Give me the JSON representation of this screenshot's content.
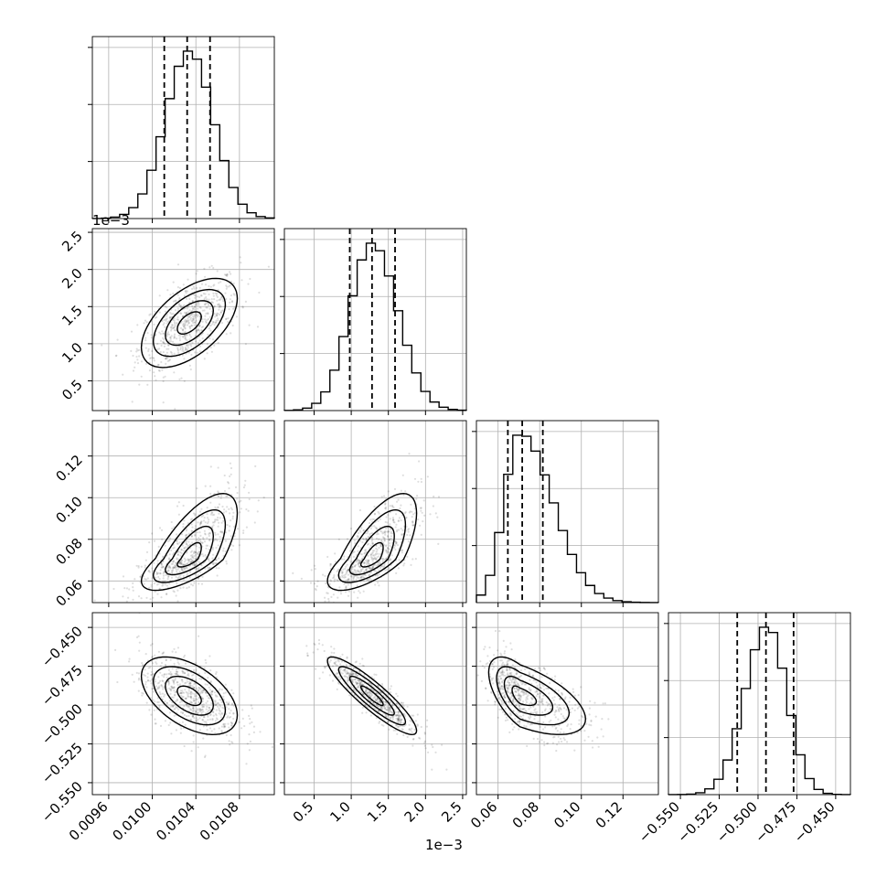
{
  "chart_data": {
    "type": "corner",
    "parameters": [
      {
        "range": [
          0.00945,
          0.01112
        ],
        "ticks": [
          0.0096,
          0.01,
          0.0104,
          0.0108
        ],
        "tick_labels": [
          "0.0096",
          "0.0100",
          "0.0104",
          "0.0108"
        ],
        "quantiles": [
          0.01011,
          0.01032,
          0.01053
        ],
        "peak": 0.01034,
        "sigma": 0.00022,
        "offset_text": ""
      },
      {
        "range": [
          0.0001,
          0.00255
        ],
        "ticks": [
          0.0005,
          0.001,
          0.0015,
          0.002,
          0.0025
        ],
        "tick_labels": [
          "0.5",
          "1.0",
          "1.5",
          "2.0",
          "2.5"
        ],
        "quantiles": [
          0.00098,
          0.00128,
          0.00159
        ],
        "peak": 0.00128,
        "sigma": 0.0003,
        "offset_text": "1e−3"
      },
      {
        "range": [
          0.0496,
          0.137
        ],
        "ticks": [
          0.06,
          0.08,
          0.1,
          0.12
        ],
        "tick_labels": [
          "0.06",
          "0.08",
          "0.10",
          "0.12"
        ],
        "quantiles": [
          0.0647,
          0.0716,
          0.0815
        ],
        "peak": 0.0705,
        "sigma": 0.0075,
        "offset_text": ""
      },
      {
        "range": [
          -0.5577,
          -0.4405
        ],
        "ticks": [
          -0.55,
          -0.525,
          -0.5,
          -0.475,
          -0.45
        ],
        "tick_labels": [
          "−0.550",
          "−0.525",
          "−0.500",
          "−0.475",
          "−0.450"
        ],
        "quantiles": [
          -0.5134,
          -0.4949,
          -0.4771
        ],
        "peak": -0.494,
        "sigma": 0.0125,
        "offset_text": ""
      }
    ],
    "histogram_bars_1d": 20,
    "quantile_levels": [
      0.16,
      0.5,
      0.84
    ],
    "correlations": [
      {
        "pair": [
          0,
          1
        ],
        "rho": 0.55
      },
      {
        "pair": [
          0,
          2
        ],
        "rho": 0.7
      },
      {
        "pair": [
          1,
          2
        ],
        "rho": 0.7
      },
      {
        "pair": [
          0,
          3
        ],
        "rho": -0.5
      },
      {
        "pair": [
          1,
          3
        ],
        "rho": -0.9
      },
      {
        "pair": [
          2,
          3
        ],
        "rho": -0.6
      }
    ],
    "contour_sigma_levels": [
      0.5,
      1.0,
      1.5,
      2.0
    ],
    "grid": true,
    "colors": {
      "line": "#000000",
      "grid": "#b0b0b0",
      "scatter": "#000000",
      "density_dark": "#000000",
      "density_light": "#ffffff"
    }
  }
}
